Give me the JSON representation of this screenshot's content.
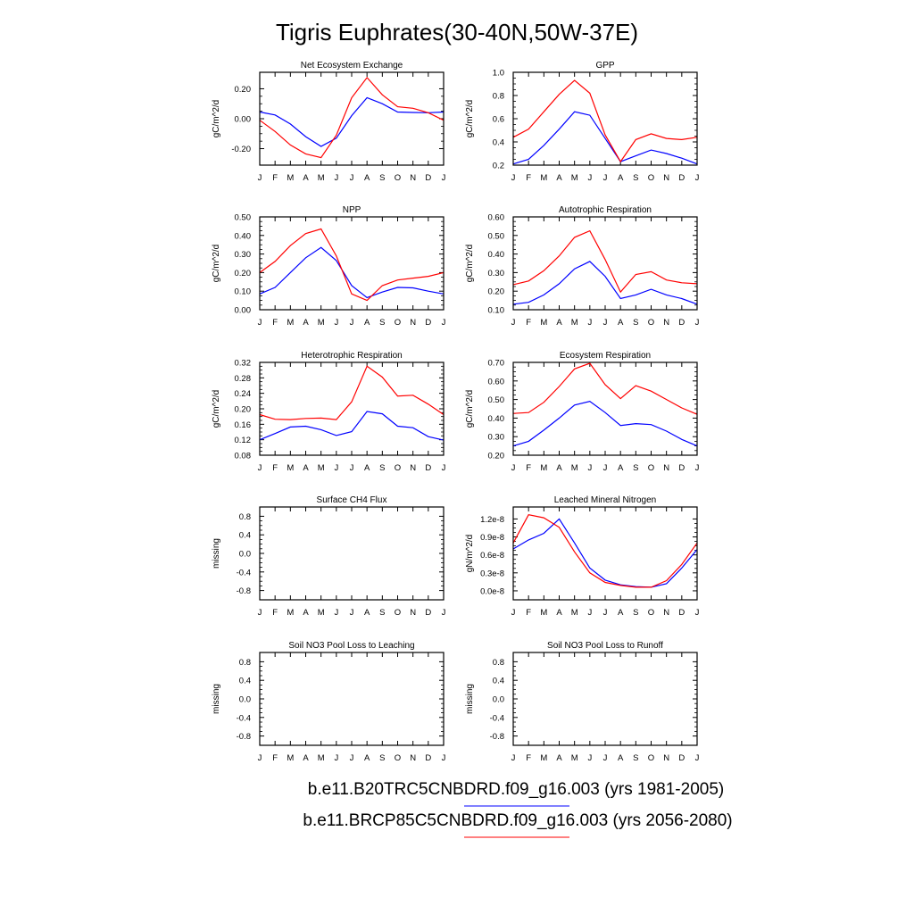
{
  "page_title": "Tigris Euphrates(30-40N,50W-37E)",
  "colors": {
    "blue": "#0000ff",
    "red": "#ff0000"
  },
  "legend": [
    {
      "text": "b.e11.B20TRC5CNBDRD.f09_g16.003 (yrs 1981-2005)",
      "color": "#0000ff"
    },
    {
      "text": "b.e11.BRCP85C5CNBDRD.f09_g16.003 (yrs 2056-2080)",
      "color": "#ff0000"
    }
  ],
  "chart_data": [
    {
      "type": "line",
      "title": "Net Ecosystem Exchange",
      "ylabel": "gC/m^2/d",
      "categories": [
        "J",
        "F",
        "M",
        "A",
        "M",
        "J",
        "J",
        "A",
        "S",
        "O",
        "N",
        "D",
        "J"
      ],
      "ylim": [
        -0.31,
        0.31
      ],
      "yticks": [
        -0.2,
        0.0,
        0.2
      ],
      "ytick_labels": [
        "-0.20",
        "0.00",
        "0.20"
      ],
      "series": [
        {
          "color": "#0000ff",
          "values": [
            0.045,
            0.025,
            -0.035,
            -0.12,
            -0.185,
            -0.13,
            0.02,
            0.14,
            0.1,
            0.045,
            0.042,
            0.04,
            0.045
          ]
        },
        {
          "color": "#ff0000",
          "values": [
            -0.01,
            -0.085,
            -0.175,
            -0.235,
            -0.26,
            -0.11,
            0.14,
            0.275,
            0.16,
            0.08,
            0.07,
            0.04,
            -0.01
          ]
        }
      ]
    },
    {
      "type": "line",
      "title": "GPP",
      "ylabel": "gC/m^2/d",
      "categories": [
        "J",
        "F",
        "M",
        "A",
        "M",
        "J",
        "J",
        "A",
        "S",
        "O",
        "N",
        "D",
        "J"
      ],
      "ylim": [
        0.2,
        1.0
      ],
      "yticks": [
        0.2,
        0.4,
        0.6,
        0.8,
        1.0
      ],
      "ytick_labels": [
        "0.2",
        "0.4",
        "0.6",
        "0.8",
        "1.0"
      ],
      "series": [
        {
          "color": "#0000ff",
          "values": [
            0.21,
            0.25,
            0.37,
            0.51,
            0.66,
            0.63,
            0.43,
            0.23,
            0.28,
            0.33,
            0.3,
            0.26,
            0.21
          ]
        },
        {
          "color": "#ff0000",
          "values": [
            0.44,
            0.51,
            0.66,
            0.81,
            0.93,
            0.82,
            0.46,
            0.23,
            0.42,
            0.47,
            0.43,
            0.42,
            0.44
          ]
        }
      ]
    },
    {
      "type": "line",
      "title": "NPP",
      "ylabel": "gC/m^2/d",
      "categories": [
        "J",
        "F",
        "M",
        "A",
        "M",
        "J",
        "J",
        "A",
        "S",
        "O",
        "N",
        "D",
        "J"
      ],
      "ylim": [
        0.0,
        0.5
      ],
      "yticks": [
        0.0,
        0.1,
        0.2,
        0.3,
        0.4,
        0.5
      ],
      "ytick_labels": [
        "0.00",
        "0.10",
        "0.20",
        "0.30",
        "0.40",
        "0.50"
      ],
      "series": [
        {
          "color": "#0000ff",
          "values": [
            0.085,
            0.12,
            0.2,
            0.28,
            0.335,
            0.265,
            0.13,
            0.065,
            0.095,
            0.12,
            0.118,
            0.1,
            0.085
          ]
        },
        {
          "color": "#ff0000",
          "values": [
            0.2,
            0.26,
            0.345,
            0.41,
            0.435,
            0.29,
            0.085,
            0.05,
            0.13,
            0.16,
            0.17,
            0.18,
            0.2
          ]
        }
      ]
    },
    {
      "type": "line",
      "title": "Autotrophic Respiration",
      "ylabel": "gC/m^2/d",
      "categories": [
        "J",
        "F",
        "M",
        "A",
        "M",
        "J",
        "J",
        "A",
        "S",
        "O",
        "N",
        "D",
        "J"
      ],
      "ylim": [
        0.1,
        0.6
      ],
      "yticks": [
        0.1,
        0.2,
        0.3,
        0.4,
        0.5,
        0.6
      ],
      "ytick_labels": [
        "0.10",
        "0.20",
        "0.30",
        "0.40",
        "0.50",
        "0.60"
      ],
      "series": [
        {
          "color": "#0000ff",
          "values": [
            0.13,
            0.14,
            0.18,
            0.24,
            0.32,
            0.36,
            0.28,
            0.16,
            0.18,
            0.21,
            0.18,
            0.16,
            0.13
          ]
        },
        {
          "color": "#ff0000",
          "values": [
            0.235,
            0.255,
            0.31,
            0.39,
            0.49,
            0.525,
            0.37,
            0.195,
            0.29,
            0.305,
            0.26,
            0.245,
            0.24
          ]
        }
      ]
    },
    {
      "type": "line",
      "title": "Heterotrophic Respiration",
      "ylabel": "gC/m^2/d",
      "categories": [
        "J",
        "F",
        "M",
        "A",
        "M",
        "J",
        "J",
        "A",
        "S",
        "O",
        "N",
        "D",
        "J"
      ],
      "ylim": [
        0.08,
        0.32
      ],
      "yticks": [
        0.08,
        0.12,
        0.16,
        0.2,
        0.24,
        0.28,
        0.32
      ],
      "ytick_labels": [
        "0.08",
        "0.12",
        "0.16",
        "0.20",
        "0.24",
        "0.28",
        "0.32"
      ],
      "series": [
        {
          "color": "#0000ff",
          "values": [
            0.12,
            0.136,
            0.153,
            0.155,
            0.146,
            0.131,
            0.141,
            0.193,
            0.187,
            0.155,
            0.151,
            0.128,
            0.119
          ]
        },
        {
          "color": "#ff0000",
          "values": [
            0.185,
            0.173,
            0.172,
            0.175,
            0.176,
            0.172,
            0.218,
            0.31,
            0.282,
            0.233,
            0.235,
            0.212,
            0.185
          ]
        }
      ]
    },
    {
      "type": "line",
      "title": "Ecosystem Respiration",
      "ylabel": "gC/m^2/d",
      "categories": [
        "J",
        "F",
        "M",
        "A",
        "M",
        "J",
        "J",
        "A",
        "S",
        "O",
        "N",
        "D",
        "J"
      ],
      "ylim": [
        0.2,
        0.7
      ],
      "yticks": [
        0.2,
        0.3,
        0.4,
        0.5,
        0.6,
        0.7
      ],
      "ytick_labels": [
        "0.20",
        "0.30",
        "0.40",
        "0.50",
        "0.60",
        "0.70"
      ],
      "series": [
        {
          "color": "#0000ff",
          "values": [
            0.25,
            0.275,
            0.335,
            0.4,
            0.47,
            0.49,
            0.43,
            0.36,
            0.37,
            0.365,
            0.33,
            0.285,
            0.25
          ]
        },
        {
          "color": "#ff0000",
          "values": [
            0.425,
            0.43,
            0.485,
            0.57,
            0.665,
            0.695,
            0.58,
            0.505,
            0.575,
            0.545,
            0.5,
            0.455,
            0.42
          ]
        }
      ]
    },
    {
      "type": "line",
      "title": "Surface CH4 Flux",
      "ylabel": "missing",
      "categories": [
        "J",
        "F",
        "M",
        "A",
        "M",
        "J",
        "J",
        "A",
        "S",
        "O",
        "N",
        "D",
        "J"
      ],
      "ylim": [
        -1.0,
        1.0
      ],
      "yticks": [
        -0.8,
        -0.4,
        0.0,
        0.4,
        0.8
      ],
      "ytick_labels": [
        "-0.8",
        "-0.4",
        "0.0",
        "0.4",
        "0.8"
      ],
      "series": []
    },
    {
      "type": "line",
      "title": "Leached Mineral Nitrogen",
      "ylabel": "gN/m^2/d",
      "categories": [
        "J",
        "F",
        "M",
        "A",
        "M",
        "J",
        "J",
        "A",
        "S",
        "O",
        "N",
        "D",
        "J"
      ],
      "ylim": [
        -1.5e-09,
        1.4e-08
      ],
      "yticks": [
        0,
        3e-09,
        6e-09,
        9e-09,
        1.2e-08
      ],
      "ytick_labels": [
        "0.0e-8",
        "0.3e-8",
        "0.6e-8",
        "0.9e-8",
        "1.2e-8"
      ],
      "series": [
        {
          "color": "#0000ff",
          "values": [
            7e-09,
            8.5e-09,
            9.6e-09,
            1.2e-08,
            8e-09,
            3.8e-09,
            1.8e-09,
            1e-09,
            7e-10,
            6e-10,
            1.2e-09,
            3.8e-09,
            6.9e-09
          ]
        },
        {
          "color": "#ff0000",
          "values": [
            8e-09,
            1.27e-08,
            1.22e-08,
            1.06e-08,
            6.5e-09,
            3e-09,
            1.4e-09,
            9e-10,
            6e-10,
            6e-10,
            1.7e-09,
            4.4e-09,
            8e-09
          ]
        }
      ]
    },
    {
      "type": "line",
      "title": "Soil NO3 Pool Loss to Leaching",
      "ylabel": "missing",
      "categories": [
        "J",
        "F",
        "M",
        "A",
        "M",
        "J",
        "J",
        "A",
        "S",
        "O",
        "N",
        "D",
        "J"
      ],
      "ylim": [
        -1.0,
        1.0
      ],
      "yticks": [
        -0.8,
        -0.4,
        0.0,
        0.4,
        0.8
      ],
      "ytick_labels": [
        "-0.8",
        "-0.4",
        "0.0",
        "0.4",
        "0.8"
      ],
      "series": []
    },
    {
      "type": "line",
      "title": "Soil NO3 Pool Loss to Runoff",
      "ylabel": "missing",
      "categories": [
        "J",
        "F",
        "M",
        "A",
        "M",
        "J",
        "J",
        "A",
        "S",
        "O",
        "N",
        "D",
        "J"
      ],
      "ylim": [
        -1.0,
        1.0
      ],
      "yticks": [
        -0.8,
        -0.4,
        0.0,
        0.4,
        0.8
      ],
      "ytick_labels": [
        "-0.8",
        "-0.4",
        "0.0",
        "0.4",
        "0.8"
      ],
      "series": []
    }
  ]
}
